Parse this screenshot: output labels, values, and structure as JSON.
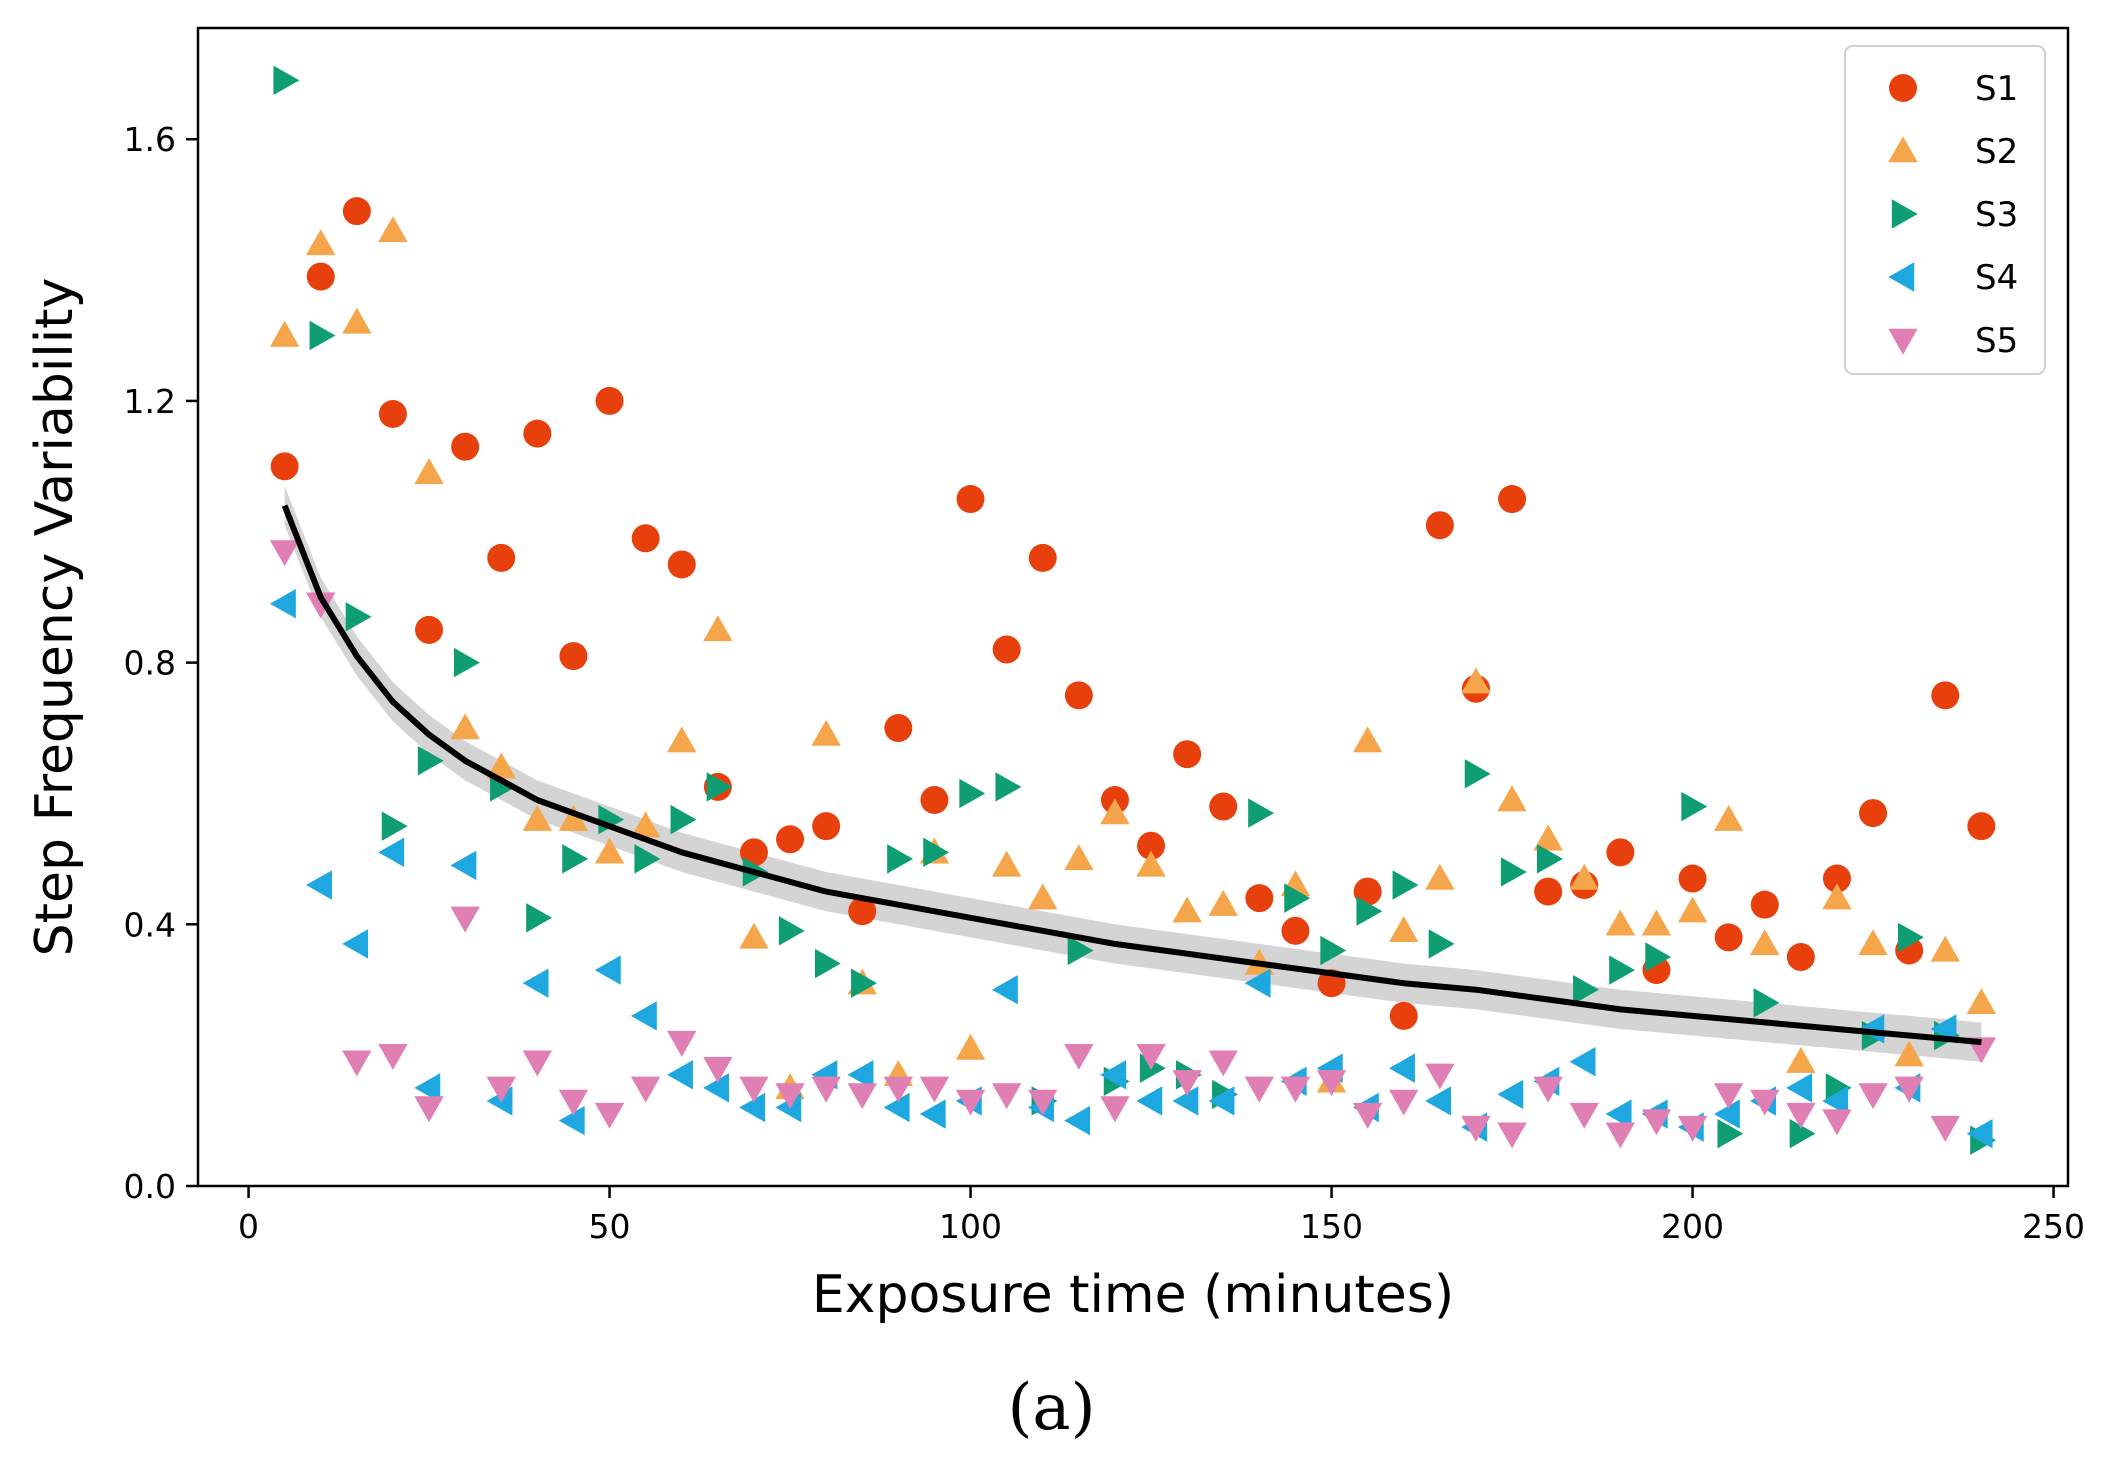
{
  "caption": "(a)",
  "chart_data": {
    "type": "scatter",
    "title": "",
    "xlabel": "Exposure time (minutes)",
    "ylabel": "Step Frequency Variability",
    "xlim": [
      -7,
      252
    ],
    "ylim": [
      0.0,
      1.77
    ],
    "xticks": [
      0,
      50,
      100,
      150,
      200,
      250
    ],
    "yticks": [
      0.0,
      0.4,
      0.8,
      1.2,
      1.6
    ],
    "ytick_labels": [
      "0.0",
      "0.4",
      "0.8",
      "1.2",
      "1.6"
    ],
    "x": [
      5,
      10,
      15,
      20,
      25,
      30,
      35,
      40,
      45,
      50,
      55,
      60,
      65,
      70,
      75,
      80,
      85,
      90,
      95,
      100,
      105,
      110,
      115,
      120,
      125,
      130,
      135,
      140,
      145,
      150,
      155,
      160,
      165,
      170,
      175,
      180,
      185,
      190,
      195,
      200,
      205,
      210,
      215,
      220,
      225,
      230,
      235,
      240
    ],
    "series": [
      {
        "name": "S1",
        "marker": "circle",
        "color": "#e8400c",
        "values": [
          1.1,
          1.39,
          1.49,
          1.18,
          0.85,
          1.13,
          0.96,
          1.15,
          0.81,
          1.2,
          0.99,
          0.95,
          0.61,
          0.51,
          0.53,
          0.55,
          0.42,
          0.7,
          0.59,
          1.05,
          0.82,
          0.96,
          0.75,
          0.59,
          0.52,
          0.66,
          0.58,
          0.44,
          0.39,
          0.31,
          0.45,
          0.26,
          1.01,
          0.76,
          1.05,
          0.45,
          0.46,
          0.51,
          0.33,
          0.47,
          0.38,
          0.43,
          0.35,
          0.47,
          0.57,
          0.36,
          0.75,
          0.55
        ]
      },
      {
        "name": "S2",
        "marker": "triangle-up",
        "color": "#f5a54a",
        "values": [
          1.3,
          1.44,
          1.32,
          1.46,
          1.09,
          0.7,
          0.64,
          0.56,
          0.56,
          0.51,
          0.55,
          0.68,
          0.85,
          0.38,
          0.15,
          0.69,
          0.31,
          0.17,
          0.51,
          0.21,
          0.49,
          0.44,
          0.5,
          0.57,
          0.49,
          0.42,
          0.43,
          0.34,
          0.46,
          0.16,
          0.68,
          0.39,
          0.47,
          0.77,
          0.59,
          0.53,
          0.47,
          0.4,
          0.4,
          0.42,
          0.56,
          0.37,
          0.19,
          0.44,
          0.37,
          0.2,
          0.36,
          0.28
        ]
      },
      {
        "name": "S3",
        "marker": "triangle-right",
        "color": "#0f9e74",
        "values": [
          1.69,
          1.3,
          0.87,
          0.55,
          0.65,
          0.8,
          0.61,
          0.41,
          0.5,
          0.56,
          0.5,
          0.56,
          0.61,
          0.48,
          0.39,
          0.34,
          0.31,
          0.5,
          0.51,
          0.6,
          0.61,
          0.13,
          0.36,
          0.16,
          0.18,
          0.17,
          0.14,
          0.57,
          0.44,
          0.36,
          0.42,
          0.46,
          0.37,
          0.63,
          0.48,
          0.5,
          0.3,
          0.33,
          0.35,
          0.58,
          0.08,
          0.28,
          0.08,
          0.15,
          0.23,
          0.38,
          0.23,
          0.07
        ]
      },
      {
        "name": "S4",
        "marker": "triangle-left",
        "color": "#1fa8e0",
        "values": [
          0.89,
          0.46,
          0.37,
          0.51,
          0.15,
          0.49,
          0.13,
          0.31,
          0.1,
          0.33,
          0.26,
          0.17,
          0.15,
          0.12,
          0.12,
          0.17,
          0.17,
          0.12,
          0.11,
          0.13,
          0.3,
          0.12,
          0.1,
          0.17,
          0.13,
          0.13,
          0.13,
          0.31,
          0.16,
          0.18,
          0.12,
          0.18,
          0.13,
          0.09,
          0.14,
          0.16,
          0.19,
          0.11,
          0.11,
          0.09,
          0.11,
          0.13,
          0.15,
          0.13,
          0.24,
          0.15,
          0.24,
          0.08
        ]
      },
      {
        "name": "S5",
        "marker": "triangle-down",
        "color": "#e07fb4",
        "values": [
          0.97,
          0.89,
          0.19,
          0.2,
          0.12,
          0.41,
          0.15,
          0.19,
          0.13,
          0.11,
          0.15,
          0.22,
          0.18,
          0.15,
          0.14,
          0.15,
          0.14,
          0.15,
          0.15,
          0.13,
          0.14,
          0.13,
          0.2,
          0.12,
          0.2,
          0.16,
          0.19,
          0.15,
          0.15,
          0.16,
          0.11,
          0.13,
          0.17,
          0.09,
          0.08,
          0.15,
          0.11,
          0.08,
          0.1,
          0.09,
          0.14,
          0.13,
          0.11,
          0.1,
          0.14,
          0.15,
          0.09,
          0.21
        ]
      }
    ],
    "fit_curve": {
      "name": "fit",
      "color": "#000000",
      "band_color": "#b8b8b8",
      "x": [
        5,
        10,
        15,
        20,
        25,
        30,
        40,
        50,
        60,
        70,
        80,
        90,
        100,
        110,
        120,
        130,
        140,
        150,
        160,
        170,
        180,
        190,
        200,
        210,
        220,
        230,
        240
      ],
      "y": [
        1.04,
        0.9,
        0.81,
        0.74,
        0.69,
        0.65,
        0.59,
        0.55,
        0.51,
        0.48,
        0.45,
        0.43,
        0.41,
        0.39,
        0.37,
        0.355,
        0.34,
        0.325,
        0.31,
        0.3,
        0.285,
        0.27,
        0.26,
        0.25,
        0.24,
        0.23,
        0.22
      ],
      "band_halfwidth": 0.03
    },
    "legend": {
      "location": "top-right",
      "entries": [
        "S1",
        "S2",
        "S3",
        "S4",
        "S5"
      ]
    },
    "grid": false
  }
}
